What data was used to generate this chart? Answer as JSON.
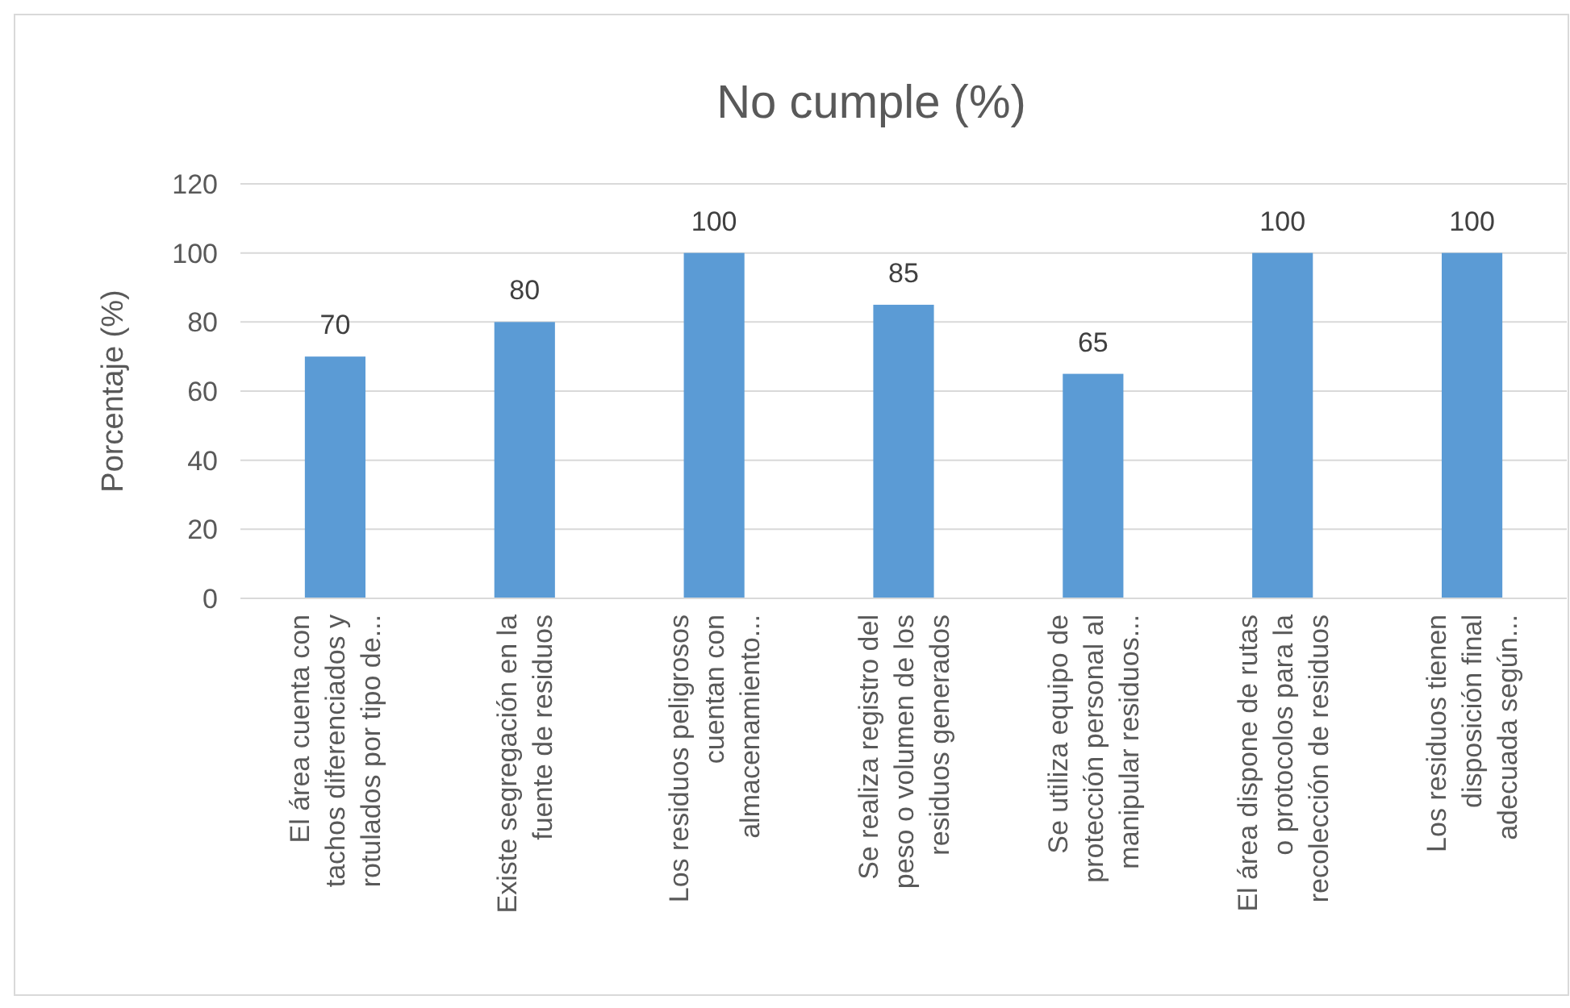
{
  "chart_data": {
    "type": "bar",
    "title": "No cumple (%)",
    "ylabel": "Porcentaje (%)",
    "categories": [
      "El área cuenta con tachos diferenciados y rotulados por tipo de...",
      "Existe segregación en la fuente de residuos",
      "Los residuos peligrosos cuentan con almacenamiento...",
      "Se realiza registro del peso o volumen de los residuos generados",
      "Se utiliza equipo de protección personal al manipular residuos...",
      "El área dispone de rutas o protocolos para la recolección de residuos",
      "Los residuos tienen disposición final adecuada según..."
    ],
    "values": [
      70,
      80,
      100,
      85,
      65,
      100,
      100
    ],
    "color": "#5b9bd5",
    "ylim": [
      0,
      120
    ],
    "yticks": [
      0,
      20,
      40,
      60,
      80,
      100,
      120
    ],
    "grid": "y",
    "data_labels": true
  }
}
